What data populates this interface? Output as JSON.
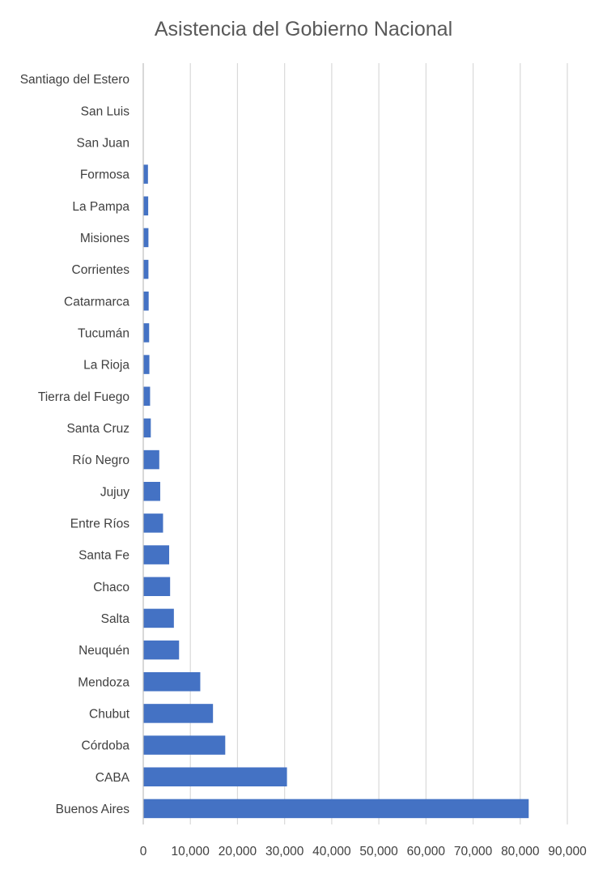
{
  "chart_data": {
    "type": "bar",
    "orientation": "horizontal",
    "title": "Asistencia del Gobierno Nacional",
    "xlabel": "",
    "ylabel": "",
    "xlim": [
      0,
      90000
    ],
    "x_ticks": [
      0,
      10000,
      20000,
      30000,
      40000,
      50000,
      60000,
      70000,
      80000,
      90000
    ],
    "x_tick_labels": [
      "0",
      "10,000",
      "20,000",
      "30,000",
      "40,000",
      "50,000",
      "60,000",
      "70,000",
      "80,000",
      "90,000"
    ],
    "grid": "vertical",
    "legend": "none",
    "bar_color": "#4472c4",
    "categories": [
      "Santiago del Estero",
      "San Luis",
      "San Juan",
      "Formosa",
      "La Pampa",
      "Misiones",
      "Corrientes",
      "Catarmarca",
      "Tucumán",
      "La Rioja",
      "Tierra del Fuego",
      "Santa Cruz",
      "Río Negro",
      "Jujuy",
      "Entre Ríos",
      "Santa Fe",
      "Chaco",
      "Salta",
      "Neuquén",
      "Mendoza",
      "Chubut",
      "Córdoba",
      "CABA",
      "Buenos Aires"
    ],
    "values": [
      0,
      0,
      0,
      1000,
      1050,
      1100,
      1100,
      1150,
      1250,
      1300,
      1450,
      1600,
      3400,
      3600,
      4200,
      5500,
      5700,
      6500,
      7600,
      12100,
      14800,
      17400,
      30500,
      81800
    ]
  }
}
